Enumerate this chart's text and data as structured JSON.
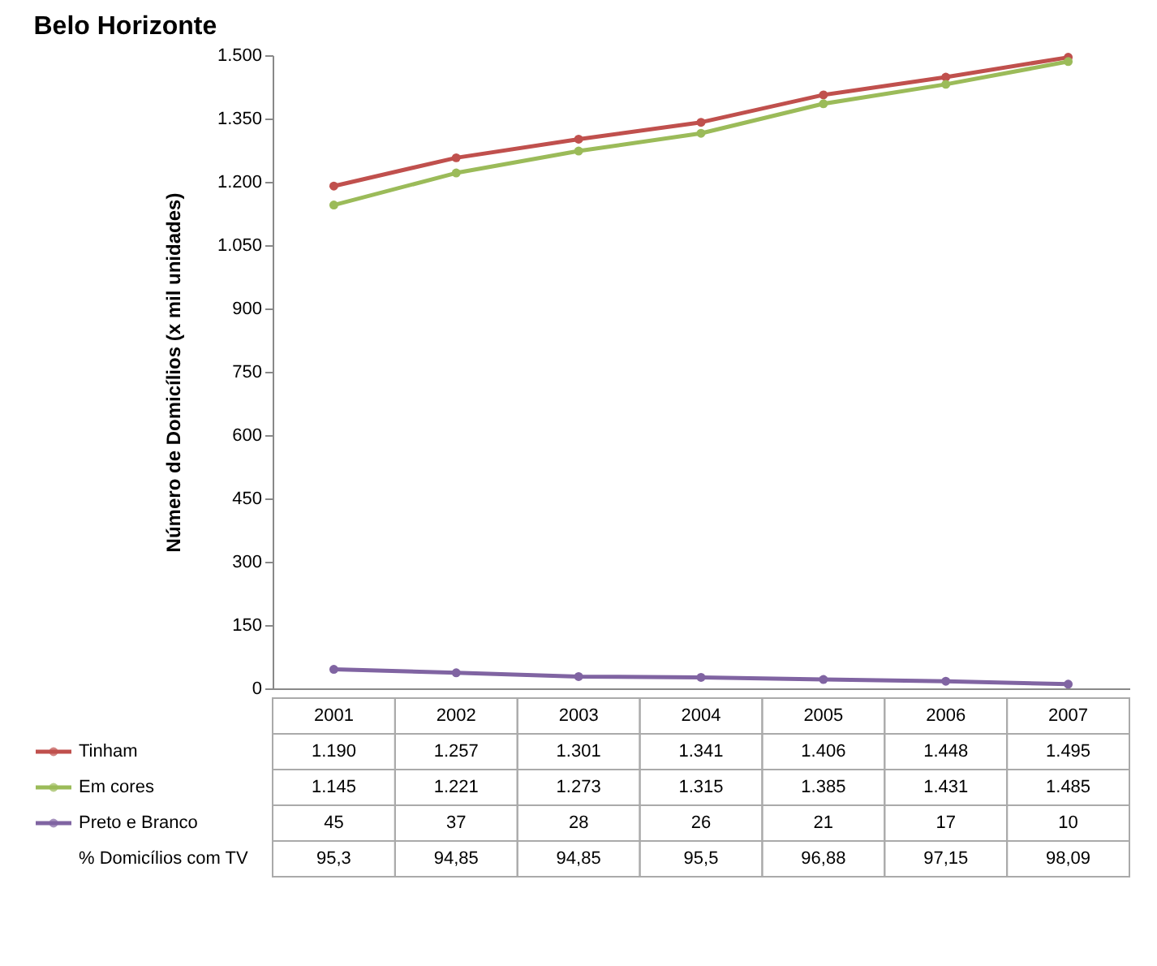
{
  "chart_data": {
    "type": "line",
    "title": "Belo Horizonte",
    "ylabel": "Número de Domicílios (x mil unidades)",
    "categories": [
      "2001",
      "2002",
      "2003",
      "2004",
      "2005",
      "2006",
      "2007"
    ],
    "series": [
      {
        "name": "Tinham",
        "color": "#c0504d",
        "values": [
          1190,
          1257,
          1301,
          1341,
          1406,
          1448,
          1495
        ],
        "value_labels": [
          "1.190",
          "1.257",
          "1.301",
          "1.341",
          "1.406",
          "1.448",
          "1.495"
        ]
      },
      {
        "name": "Em cores",
        "color": "#9bbb59",
        "values": [
          1145,
          1221,
          1273,
          1315,
          1385,
          1431,
          1485
        ],
        "value_labels": [
          "1.145",
          "1.221",
          "1.273",
          "1.315",
          "1.385",
          "1.431",
          "1.485"
        ]
      },
      {
        "name": "Preto e Branco",
        "color": "#8064a2",
        "values": [
          45,
          37,
          28,
          26,
          21,
          17,
          10
        ],
        "value_labels": [
          "45",
          "37",
          "28",
          "26",
          "21",
          "17",
          "10"
        ]
      }
    ],
    "annotations": [
      "% Domicílios com TV",
      "95,3",
      "94,85",
      "94,85",
      "95,5",
      "96,88",
      "97,15",
      "98,09"
    ],
    "ylim": [
      0,
      1500
    ],
    "yticks": [
      0,
      150,
      300,
      450,
      600,
      750,
      900,
      {
        "value": 1050,
        "label": "1.050"
      },
      {
        "value": 1200,
        "label": "1.200"
      },
      {
        "value": 1350,
        "label": "1.350"
      },
      {
        "value": 1500,
        "label": "1.500"
      }
    ],
    "grid": false,
    "legend": "bottom",
    "marker": "circle",
    "line_style": "solid"
  }
}
